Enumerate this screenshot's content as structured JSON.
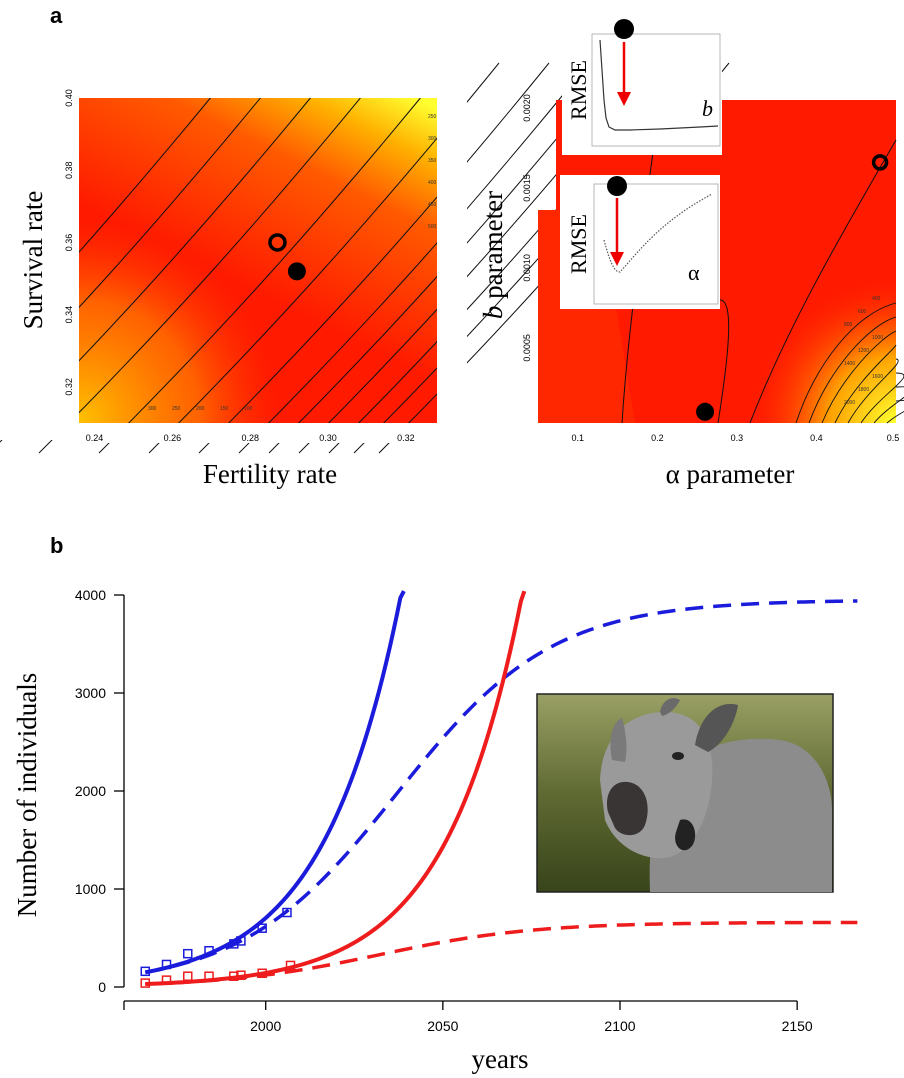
{
  "panel_labels": {
    "a": "a",
    "b": "b"
  },
  "colors": {
    "blue": "#1b1bdc",
    "red": "#ee1c1c",
    "heat_low": "#ff1a00",
    "heat_high": "#ffff1a"
  },
  "chart_data": [
    {
      "type": "heatmap",
      "panel": "a-left",
      "xlabel": "Fertility rate",
      "ylabel": "Survival rate",
      "xlim": [
        0.236,
        0.328
      ],
      "ylim": [
        0.31,
        0.4
      ],
      "xticks": [
        "0.24",
        "0.26",
        "0.28",
        "0.30",
        "0.32"
      ],
      "yticks": [
        "0.32",
        "0.34",
        "0.36",
        "0.38",
        "0.40"
      ],
      "markers": [
        {
          "kind": "open",
          "x": 0.287,
          "y": 0.36
        },
        {
          "kind": "filled",
          "x": 0.292,
          "y": 0.352
        }
      ],
      "contour_labels": [
        "300",
        "250",
        "200",
        "150",
        "100",
        "250",
        "300",
        "350",
        "400",
        "450",
        "500"
      ]
    },
    {
      "type": "heatmap",
      "panel": "a-right",
      "xlabel": "α parameter",
      "ylabel_italic": "b",
      "ylabel_rest": " parameter",
      "xlim": [
        0.05,
        0.5
      ],
      "ylim": [
        3e-05,
        0.00205
      ],
      "xticks": [
        "0.1",
        "0.2",
        "0.3",
        "0.4",
        "0.5"
      ],
      "yticks": [
        "0.0005",
        "0.0010",
        "0.0015",
        "0.0020"
      ],
      "markers": [
        {
          "kind": "open",
          "x": 0.48,
          "y": 0.00166
        },
        {
          "kind": "filled",
          "x": 0.26,
          "y": 0.0001
        }
      ],
      "contour_labels": [
        "400",
        "600",
        "800",
        "1000",
        "1200",
        "1400",
        "1600",
        "1800",
        "2000"
      ],
      "insets": [
        {
          "ylabel": "RMSE",
          "param": "b",
          "param_italic": true
        },
        {
          "ylabel": "RMSE",
          "param": "α",
          "param_italic": false
        }
      ]
    },
    {
      "type": "line",
      "panel": "b",
      "xlabel": "years",
      "ylabel": "Number of individuals",
      "xlim": [
        1960,
        2170
      ],
      "ylim": [
        0,
        4000
      ],
      "xticks": [
        2000,
        2050,
        2100,
        2150
      ],
      "yticks": [
        0,
        1000,
        2000,
        3000,
        4000
      ],
      "series": [
        {
          "color": "blue",
          "style": "solid",
          "model": "exp",
          "x0": 1966,
          "y0": 150,
          "rate": 0.0455
        },
        {
          "color": "blue",
          "style": "dashed",
          "model": "logistic",
          "x0": 1966,
          "y0": 150,
          "K": 3950,
          "rate": 0.0455
        },
        {
          "color": "red",
          "style": "solid",
          "model": "exp",
          "x0": 1966,
          "y0": 30,
          "rate": 0.046
        },
        {
          "color": "red",
          "style": "dashed",
          "model": "logistic",
          "x0": 1966,
          "y0": 30,
          "K": 660,
          "rate": 0.046
        }
      ],
      "observed": [
        {
          "color": "blue",
          "points": [
            [
              1966,
              160
            ],
            [
              1972,
              230
            ],
            [
              1978,
              340
            ],
            [
              1984,
              370
            ],
            [
              1991,
              440
            ],
            [
              1993,
              470
            ],
            [
              1999,
              600
            ],
            [
              2006,
              760
            ]
          ]
        },
        {
          "color": "red",
          "points": [
            [
              1966,
              40
            ],
            [
              1972,
              70
            ],
            [
              1978,
              110
            ],
            [
              1984,
              110
            ],
            [
              1991,
              110
            ],
            [
              1993,
              120
            ],
            [
              1999,
              140
            ],
            [
              2007,
              220
            ]
          ]
        }
      ]
    }
  ]
}
